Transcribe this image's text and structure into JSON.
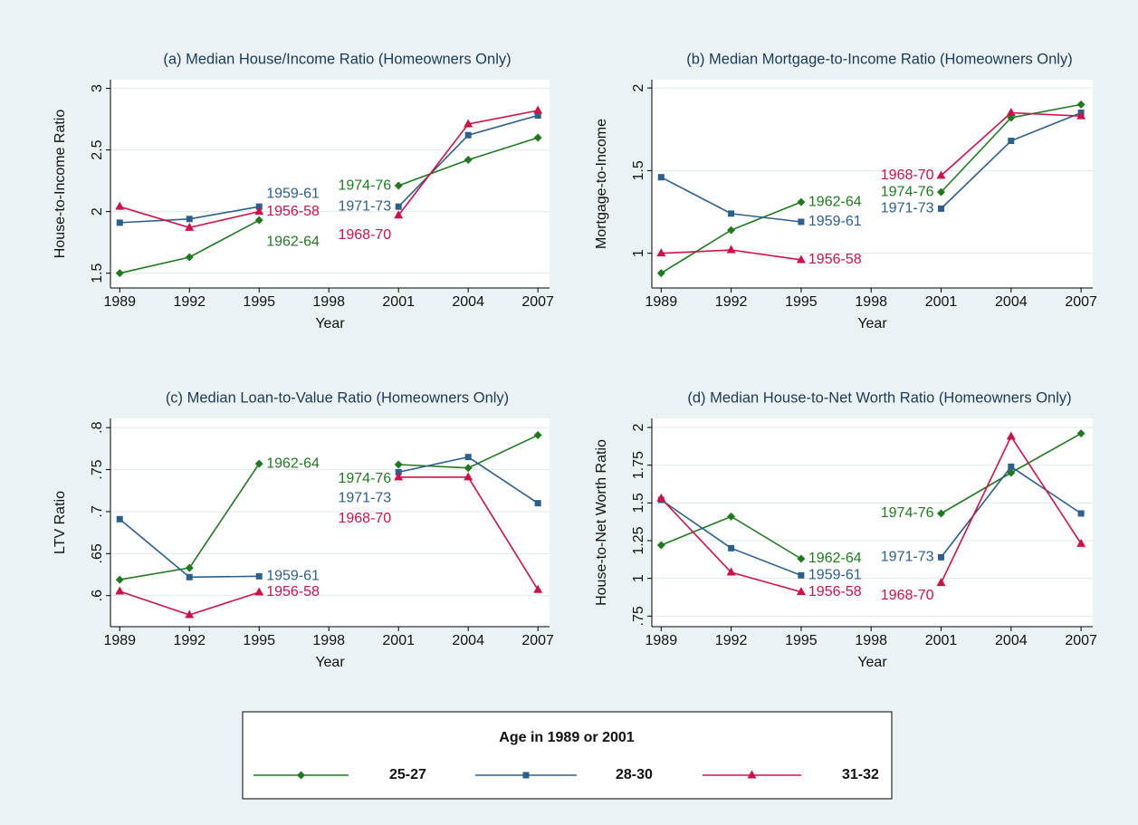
{
  "legend_title": "Age in 1989 or 2001",
  "chart_data": [
    {
      "type": "line",
      "title": "(a) Median House/Income Ratio (Homeowners Only)",
      "x_label": "Year",
      "y_label": "House-to-Income Ratio",
      "x": [
        1989,
        1992,
        1995,
        1998,
        2001,
        2004,
        2007
      ],
      "xlim": [
        1988.6,
        2007.5
      ],
      "xticks": [
        1989,
        1992,
        1995,
        1998,
        2001,
        2004,
        2007
      ],
      "ylim": [
        1.38,
        3.07
      ],
      "yticks": [
        1.5,
        2,
        2.5,
        3
      ],
      "grid": true,
      "series": [
        {
          "name": "25-27",
          "color": "#1f7a1f",
          "marker": "diamond",
          "values": [
            1.5,
            1.63,
            1.93,
            null,
            2.21,
            2.42,
            2.6
          ],
          "segment_labels": [
            "1962-64",
            "1974-76"
          ]
        },
        {
          "name": "28-30",
          "color": "#2c5f8c",
          "marker": "square",
          "values": [
            1.91,
            1.94,
            2.04,
            null,
            2.04,
            2.62,
            2.78
          ],
          "segment_labels": [
            "1959-61",
            "1971-73"
          ]
        },
        {
          "name": "31-32",
          "color": "#d01048",
          "marker": "triangle",
          "values": [
            2.04,
            1.87,
            2.0,
            null,
            1.97,
            2.71,
            2.82
          ],
          "segment_labels": [
            "1956-58",
            "1968-70"
          ]
        }
      ]
    },
    {
      "type": "line",
      "title": "(b) Median Mortgage-to-Income Ratio (Homeowners Only)",
      "x_label": "Year",
      "y_label": "Mortgage-to-Income",
      "x": [
        1989,
        1992,
        1995,
        1998,
        2001,
        2004,
        2007
      ],
      "xlim": [
        1988.6,
        2007.5
      ],
      "xticks": [
        1989,
        1992,
        1995,
        1998,
        2001,
        2004,
        2007
      ],
      "ylim": [
        0.79,
        2.05
      ],
      "yticks": [
        1,
        1.5,
        2
      ],
      "grid": true,
      "series": [
        {
          "name": "25-27",
          "color": "#1f7a1f",
          "marker": "diamond",
          "values": [
            0.88,
            1.14,
            1.31,
            null,
            1.37,
            1.82,
            1.9
          ],
          "segment_labels": [
            "1962-64",
            "1974-76"
          ]
        },
        {
          "name": "28-30",
          "color": "#2c5f8c",
          "marker": "square",
          "values": [
            1.46,
            1.24,
            1.19,
            null,
            1.27,
            1.68,
            1.85
          ],
          "segment_labels": [
            "1959-61",
            "1971-73"
          ]
        },
        {
          "name": "31-32",
          "color": "#d01048",
          "marker": "triangle",
          "values": [
            1.0,
            1.02,
            0.96,
            null,
            1.47,
            1.85,
            1.83
          ],
          "segment_labels": [
            "1956-58",
            "1968-70"
          ]
        }
      ]
    },
    {
      "type": "line",
      "title": "(c) Median Loan-to-Value Ratio (Homeowners Only)",
      "x_label": "Year",
      "y_label": "LTV Ratio",
      "x": [
        1989,
        1992,
        1995,
        1998,
        2001,
        2004,
        2007
      ],
      "xlim": [
        1988.6,
        2007.5
      ],
      "xticks": [
        1989,
        1992,
        1995,
        1998,
        2001,
        2004,
        2007
      ],
      "ylim": [
        0.563,
        0.811
      ],
      "yticks": [
        {
          "value": 0.6,
          "label": ".6"
        },
        {
          "value": 0.65,
          "label": ".65"
        },
        {
          "value": 0.7,
          "label": ".7"
        },
        {
          "value": 0.75,
          "label": ".75"
        },
        {
          "value": 0.8,
          "label": ".8"
        }
      ],
      "grid": true,
      "series": [
        {
          "name": "25-27",
          "color": "#1f7a1f",
          "marker": "diamond",
          "values": [
            0.619,
            0.633,
            0.757,
            null,
            0.756,
            0.752,
            0.791
          ],
          "segment_labels": [
            "1962-64",
            "1974-76"
          ]
        },
        {
          "name": "28-30",
          "color": "#2c5f8c",
          "marker": "square",
          "values": [
            0.691,
            0.622,
            0.623,
            null,
            0.747,
            0.765,
            0.71
          ],
          "segment_labels": [
            "1959-61",
            "1971-73"
          ]
        },
        {
          "name": "31-32",
          "color": "#d01048",
          "marker": "triangle",
          "values": [
            0.605,
            0.577,
            0.604,
            null,
            0.741,
            0.741,
            0.607
          ],
          "segment_labels": [
            "1956-58",
            "1968-70"
          ]
        }
      ]
    },
    {
      "type": "line",
      "title": "(d) Median House-to-Net Worth Ratio (Homeowners Only)",
      "x_label": "Year",
      "y_label": "House-to-Net Worth Ratio",
      "x": [
        1989,
        1992,
        1995,
        1998,
        2001,
        2004,
        2007
      ],
      "xlim": [
        1988.6,
        2007.5
      ],
      "xticks": [
        1989,
        1992,
        1995,
        1998,
        2001,
        2004,
        2007
      ],
      "ylim": [
        0.68,
        2.06
      ],
      "yticks": [
        {
          "value": 0.75,
          "label": ".75"
        },
        1,
        1.25,
        1.5,
        1.75,
        2
      ],
      "grid": true,
      "series": [
        {
          "name": "25-27",
          "color": "#1f7a1f",
          "marker": "diamond",
          "values": [
            1.22,
            1.41,
            1.13,
            null,
            1.43,
            1.7,
            1.96
          ],
          "segment_labels": [
            "1962-64",
            "1974-76"
          ]
        },
        {
          "name": "28-30",
          "color": "#2c5f8c",
          "marker": "square",
          "values": [
            1.52,
            1.2,
            1.02,
            null,
            1.14,
            1.74,
            1.43
          ],
          "segment_labels": [
            "1959-61",
            "1971-73"
          ]
        },
        {
          "name": "31-32",
          "color": "#d01048",
          "marker": "triangle",
          "values": [
            1.53,
            1.04,
            0.91,
            null,
            0.97,
            1.94,
            1.23
          ],
          "segment_labels": [
            "1956-58",
            "1968-70"
          ]
        }
      ]
    }
  ]
}
